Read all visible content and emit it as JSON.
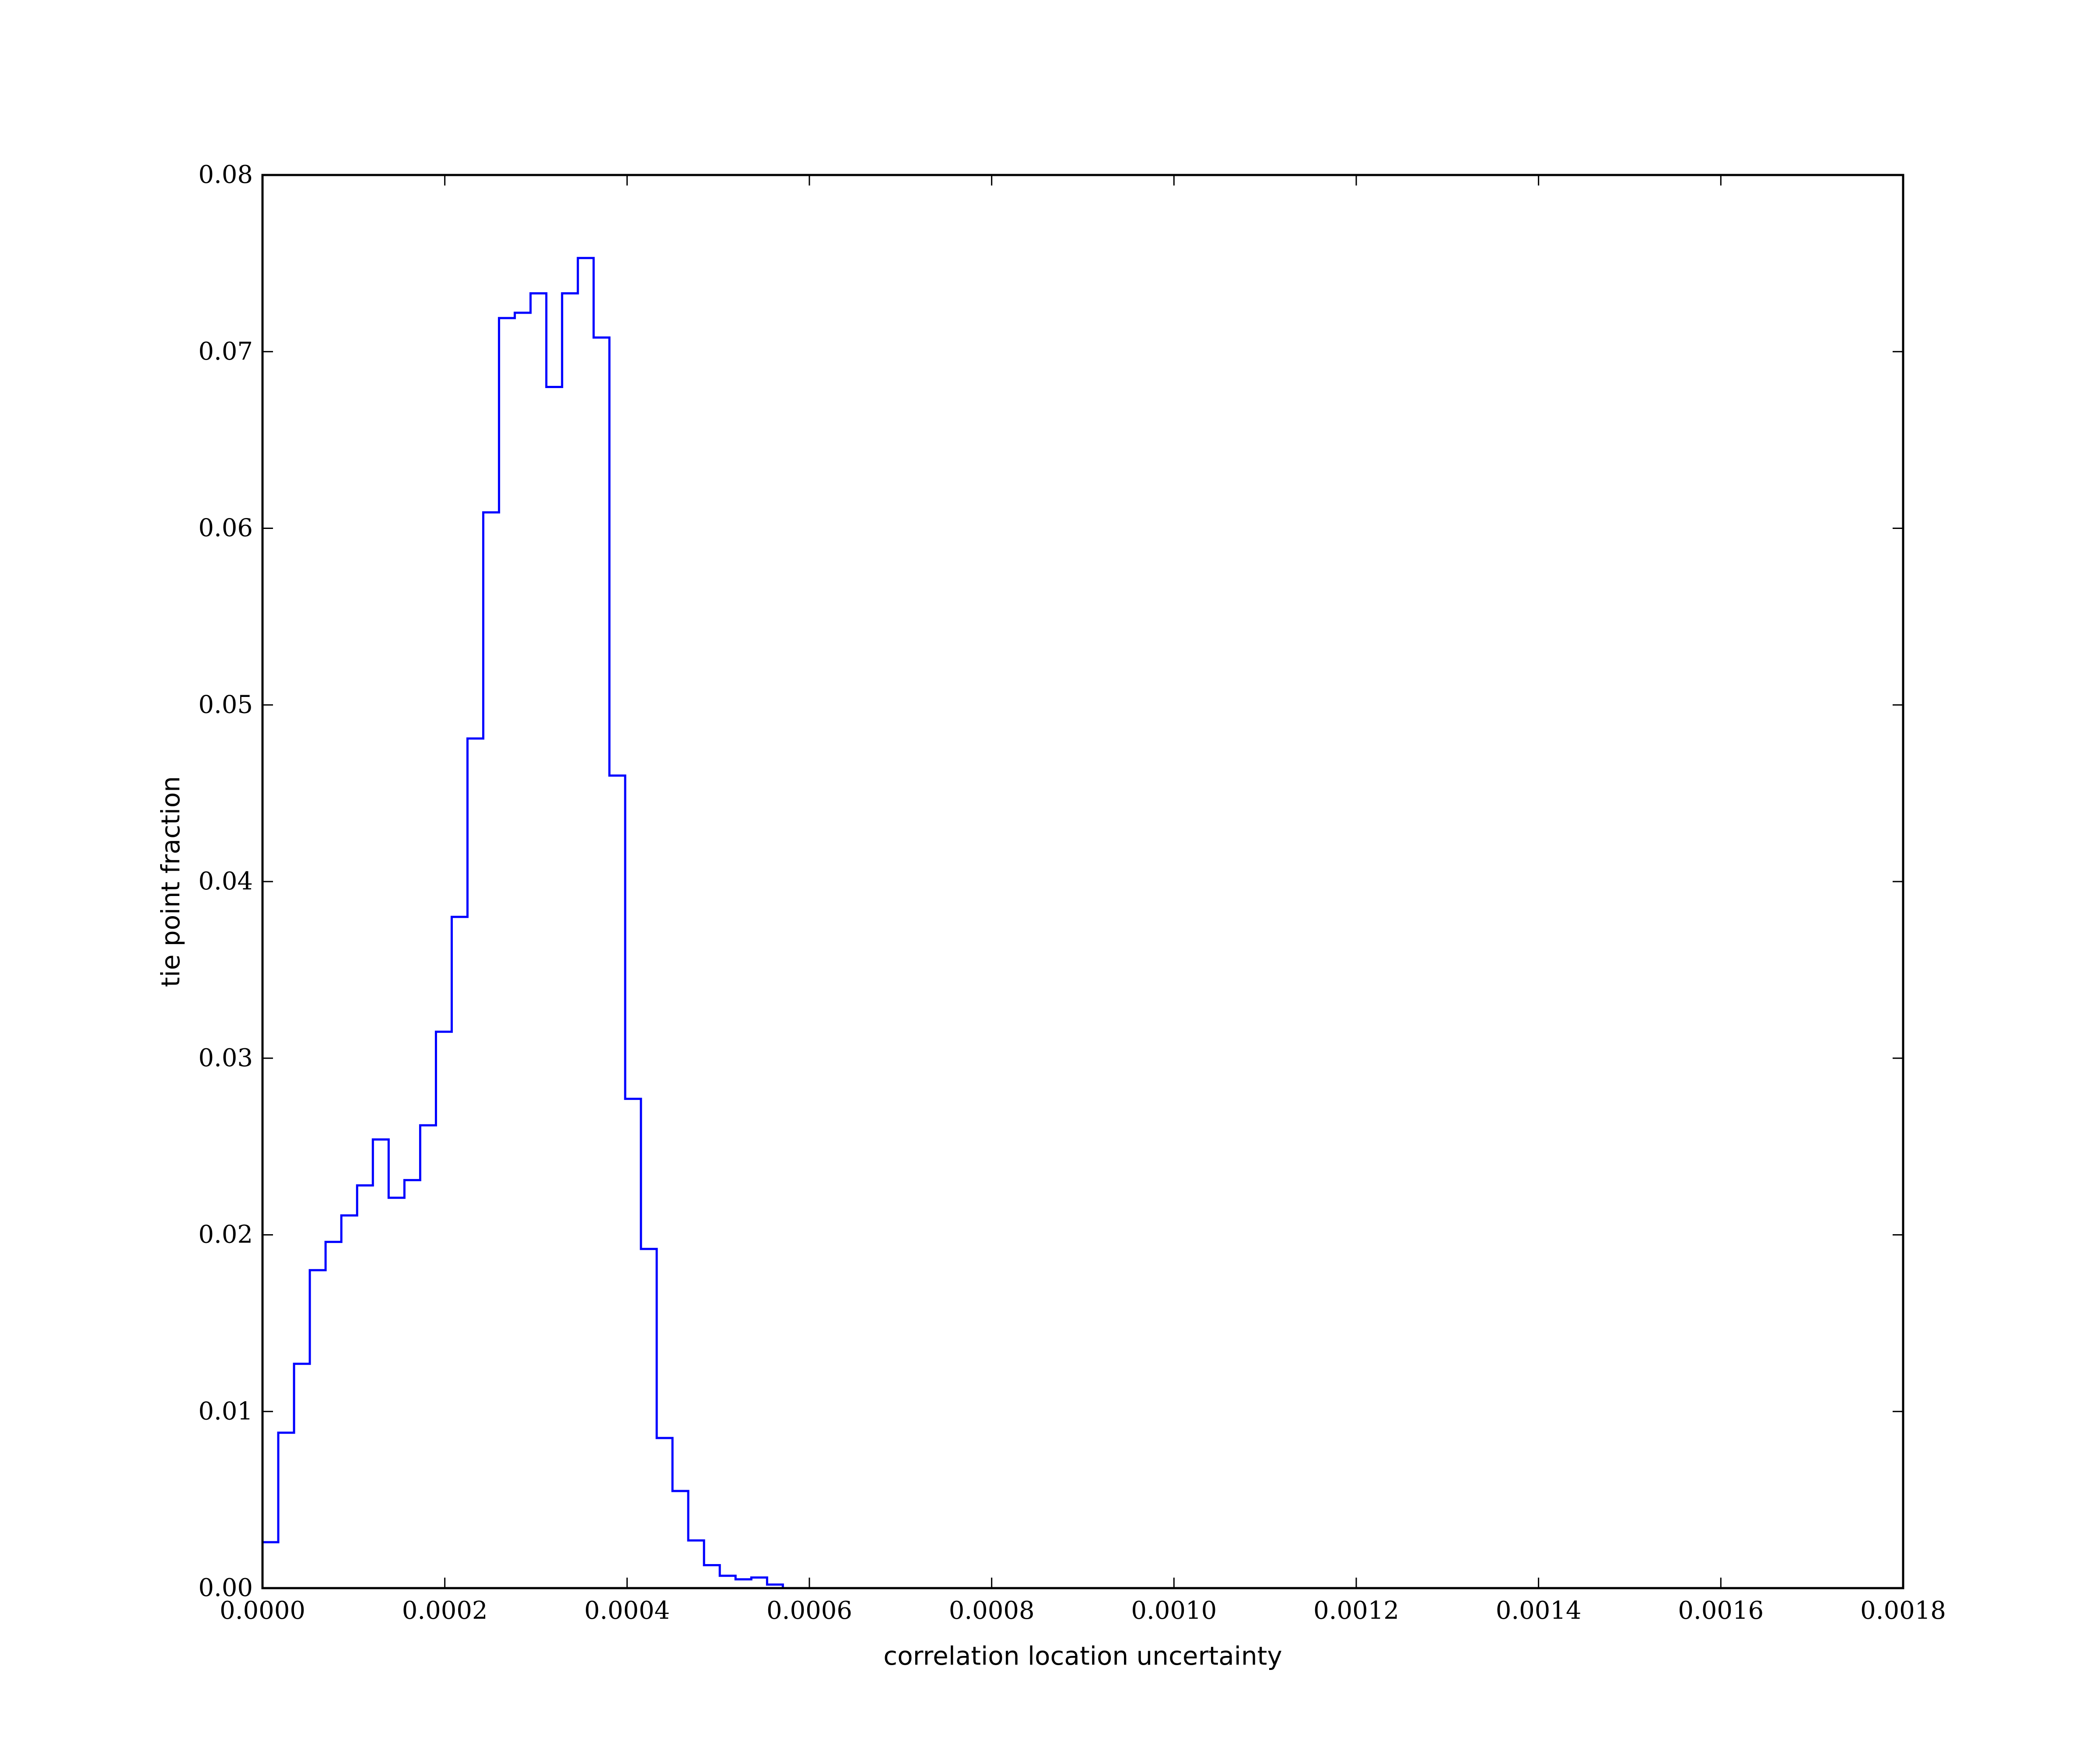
{
  "chart_data": {
    "type": "step",
    "title": "",
    "xlabel": "correlation location uncertainty",
    "ylabel": "tie point fraction",
    "xlim": [
      0.0,
      0.0018
    ],
    "ylim": [
      0.0,
      0.08
    ],
    "xticks": [
      "0.0000",
      "0.0002",
      "0.0004",
      "0.0006",
      "0.0008",
      "0.0010",
      "0.0012",
      "0.0014",
      "0.0016",
      "0.0018"
    ],
    "yticks": [
      "0.00",
      "0.01",
      "0.02",
      "0.03",
      "0.04",
      "0.05",
      "0.06",
      "0.07",
      "0.08"
    ],
    "grid": false,
    "legend": "none",
    "series": [
      {
        "color": "#0000ff",
        "bin_edges": [
          0.0,
          1.73e-05,
          3.46e-05,
          5.19e-05,
          6.92e-05,
          8.65e-05,
          0.0001038,
          0.0001211,
          0.0001384,
          0.0001557,
          0.000173,
          0.0001903,
          0.0002076,
          0.0002249,
          0.0002422,
          0.0002595,
          0.0002768,
          0.0002941,
          0.0003114,
          0.0003287,
          0.000346,
          0.0003633,
          0.0003806,
          0.0003979,
          0.0004152,
          0.0004325,
          0.0004498,
          0.0004671,
          0.0004844,
          0.0005017,
          0.000519,
          0.0005363,
          0.0005536,
          0.0005709
        ],
        "values": [
          0.0026,
          0.0088,
          0.0127,
          0.018,
          0.0196,
          0.0211,
          0.0228,
          0.0254,
          0.0221,
          0.0231,
          0.0262,
          0.0315,
          0.038,
          0.0481,
          0.0609,
          0.0719,
          0.0722,
          0.0733,
          0.068,
          0.0733,
          0.0753,
          0.0708,
          0.046,
          0.0277,
          0.0192,
          0.0085,
          0.0055,
          0.0027,
          0.0013,
          0.0007,
          0.0005,
          0.0006,
          0.0002
        ]
      }
    ]
  }
}
